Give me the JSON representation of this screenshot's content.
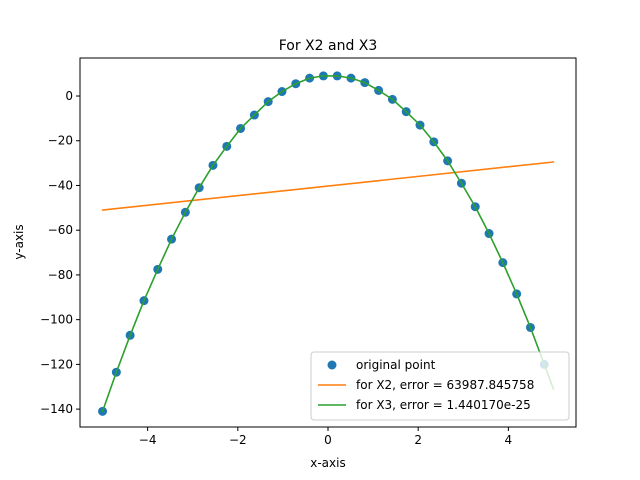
{
  "chart_data": {
    "type": "line",
    "title": "For X2 and X3",
    "xlabel": "x-axis",
    "ylabel": "y-axis",
    "xlim": [
      -5.5,
      5.5
    ],
    "ylim": [
      -148,
      17
    ],
    "xticks": [
      -4,
      -2,
      0,
      2,
      4
    ],
    "xtick_labels": [
      "−4",
      "−2",
      "0",
      "2",
      "4"
    ],
    "yticks": [
      -140,
      -120,
      -100,
      -80,
      -60,
      -40,
      -20,
      0
    ],
    "ytick_labels": [
      "−140",
      "−120",
      "−100",
      "−80",
      "−60",
      "−40",
      "−20",
      "0"
    ],
    "grid": false,
    "legend_position": "lower right",
    "series": [
      {
        "name": "original point",
        "kind": "scatter",
        "color": "#1f77b4",
        "x": [
          -5.0,
          -4.6939,
          -4.3878,
          -4.0816,
          -3.7755,
          -3.4694,
          -3.1633,
          -2.8571,
          -2.551,
          -2.2449,
          -1.9388,
          -1.6327,
          -1.3265,
          -1.0204,
          -0.7143,
          -0.4082,
          -0.102,
          0.2041,
          0.5102,
          0.8163,
          1.1224,
          1.4286,
          1.7347,
          2.0408,
          2.3469,
          2.6531,
          2.9592,
          3.2653,
          3.5714,
          3.8776,
          4.1837,
          4.4898,
          4.7959
        ],
        "y": [
          -141,
          -123.5,
          -107,
          -91.5,
          -77.5,
          -64,
          -52,
          -41,
          -31,
          -22.5,
          -14.5,
          -8.5,
          -2.5,
          2,
          5.5,
          8,
          9,
          9,
          8,
          6,
          2.5,
          -1.5,
          -7,
          -13,
          -20.5,
          -29,
          -39,
          -49.5,
          -61.5,
          -74.5,
          -88.5,
          -103.5,
          -120
        ]
      },
      {
        "name": "for X2, error = 63987.845758",
        "kind": "line",
        "color": "#ff7f0e",
        "x": [
          -5.0,
          5.0
        ],
        "y": [
          -51,
          -29.5
        ]
      },
      {
        "name": "for X3, error = 1.440170e-25",
        "kind": "line",
        "color": "#2ca02c",
        "x": [
          -5.0,
          -4.6939,
          -4.3878,
          -4.0816,
          -3.7755,
          -3.4694,
          -3.1633,
          -2.8571,
          -2.551,
          -2.2449,
          -1.9388,
          -1.6327,
          -1.3265,
          -1.0204,
          -0.7143,
          -0.4082,
          -0.102,
          0.2041,
          0.5102,
          0.8163,
          1.1224,
          1.4286,
          1.7347,
          2.0408,
          2.3469,
          2.6531,
          2.9592,
          3.2653,
          3.5714,
          3.8776,
          4.1837,
          4.4898,
          4.7959,
          5.0
        ],
        "y": [
          -141,
          -123.5,
          -107,
          -91.5,
          -77.5,
          -64,
          -52,
          -41,
          -31,
          -22.5,
          -14.5,
          -8.5,
          -2.5,
          2,
          5.5,
          8,
          9,
          9,
          8,
          6,
          2.5,
          -1.5,
          -7,
          -13,
          -20.5,
          -29,
          -39,
          -49.5,
          -61.5,
          -74.5,
          -88.5,
          -103.5,
          -120,
          -131
        ]
      }
    ]
  }
}
